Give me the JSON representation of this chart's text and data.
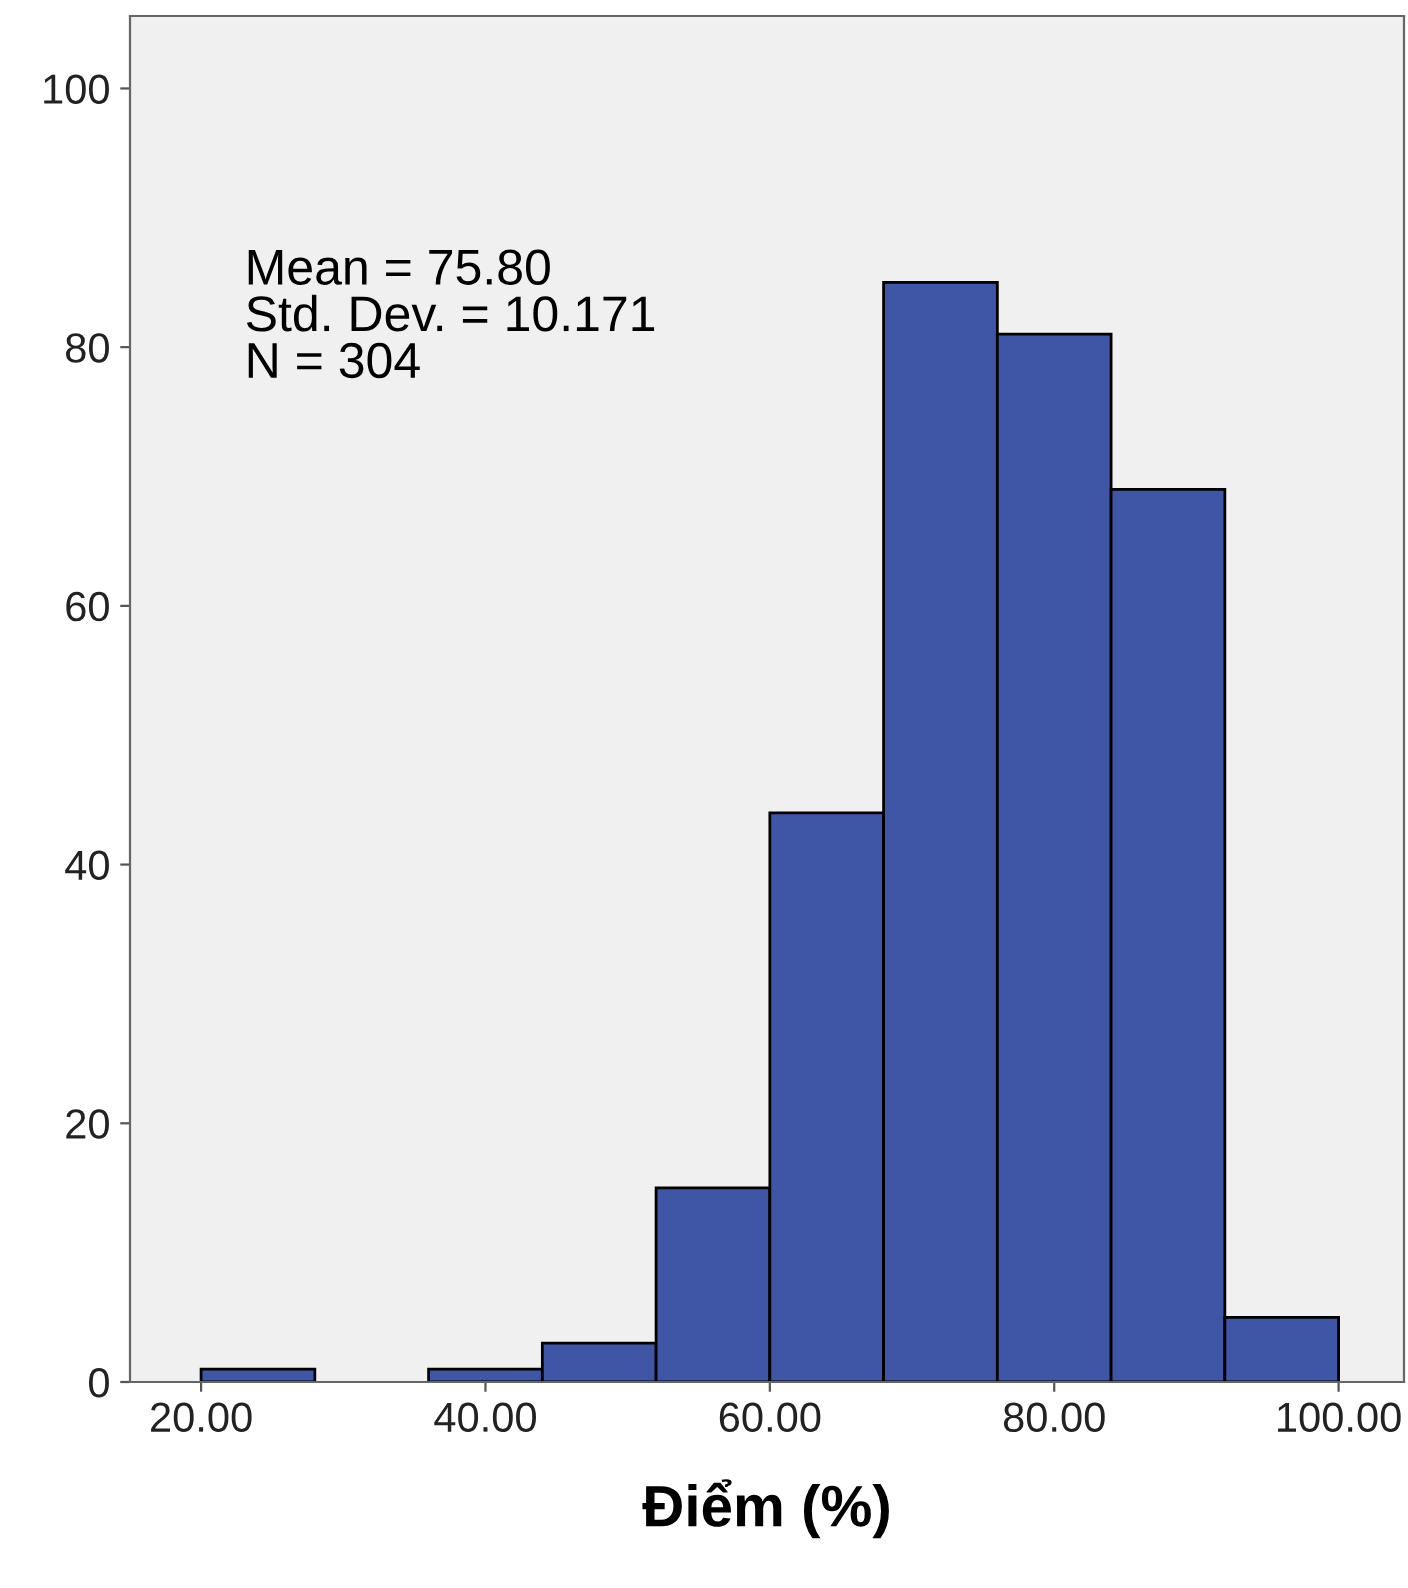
{
  "chart_data": {
    "type": "histogram",
    "xlabel": "Điểm (%)",
    "bins": [
      20,
      28,
      36,
      44,
      52,
      60,
      68,
      76,
      84,
      92,
      100
    ],
    "values": [
      1,
      0,
      1,
      3,
      15,
      44,
      85,
      81,
      69,
      5
    ],
    "color": "#3f55a6",
    "xlim": [
      15,
      104.6
    ],
    "ylim": [
      0,
      105.6
    ],
    "xticks": [
      {
        "value": 20,
        "label": "20.00"
      },
      {
        "value": 40,
        "label": "40.00"
      },
      {
        "value": 60,
        "label": "60.00"
      },
      {
        "value": 80,
        "label": "80.00"
      },
      {
        "value": 100,
        "label": "100.00"
      }
    ],
    "yticks": [
      0,
      20,
      40,
      60,
      80,
      100
    ],
    "grid": false,
    "annotations": [
      "Mean = 75.80\nStd. Dev. = 10.171\nN = 304"
    ]
  }
}
